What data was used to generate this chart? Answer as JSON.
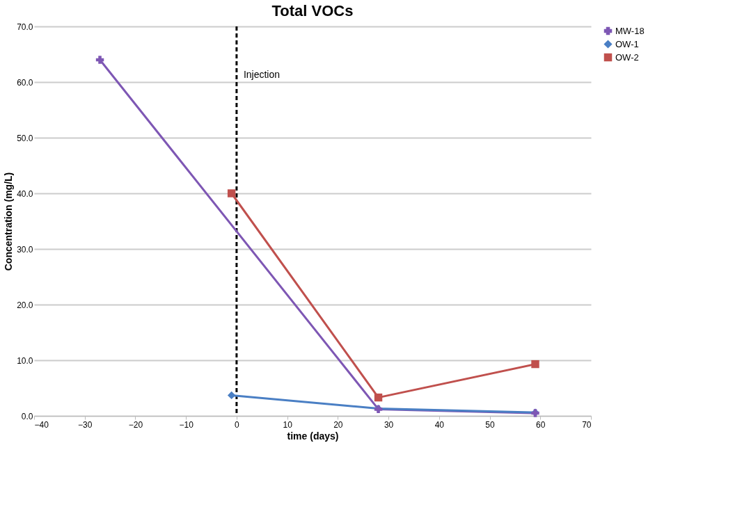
{
  "chart_data": {
    "type": "line",
    "title": "Total VOCs",
    "xlabel": "time (days)",
    "ylabel": "Concentration (mg/L)",
    "xlim": [
      -40,
      70
    ],
    "xticks": [
      -40,
      -30,
      -20,
      -10,
      0,
      10,
      20,
      30,
      40,
      50,
      60,
      70
    ],
    "ylim": [
      0,
      70
    ],
    "yticks": [
      {
        "value": 0,
        "label": "0.0"
      },
      {
        "value": 10,
        "label": "10.0"
      },
      {
        "value": 20,
        "label": "20.0"
      },
      {
        "value": 30,
        "label": "30.0"
      },
      {
        "value": 40,
        "label": "40.0"
      },
      {
        "value": 50,
        "label": "50.0"
      },
      {
        "value": 60,
        "label": "60.0"
      },
      {
        "value": 70,
        "label": "70.0"
      }
    ],
    "grid": "y",
    "legend": "right",
    "series": [
      {
        "name": "MW-18",
        "color": "#7e57b4",
        "marker": "cross",
        "x": [
          -27,
          28,
          59
        ],
        "values": [
          64,
          1.2,
          0.5
        ]
      },
      {
        "name": "OW-1",
        "color": "#4a7fc4",
        "marker": "diamond",
        "x": [
          -1,
          28,
          59
        ],
        "values": [
          3.7,
          1.3,
          0.6
        ]
      },
      {
        "name": "OW-2",
        "color": "#c0504d",
        "marker": "square",
        "x": [
          -1,
          28,
          59
        ],
        "values": [
          40,
          3.3,
          9.3
        ]
      }
    ],
    "ref_lines": [
      {
        "axis": "x",
        "value": 0,
        "label": "Injection",
        "color": "#000000",
        "line_style": "dashed"
      }
    ]
  }
}
